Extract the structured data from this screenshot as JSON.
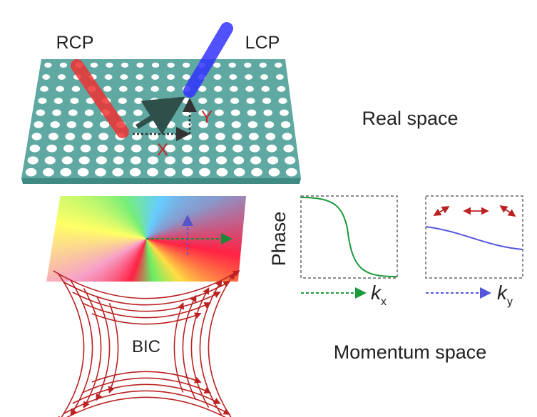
{
  "labels": {
    "rcp": "RCP",
    "lcp": "LCP",
    "x_axis": "X",
    "y_axis": "Y",
    "real_space": "Real space",
    "phase": "Phase",
    "kx": {
      "k": "k",
      "sub": "x"
    },
    "ky": {
      "k": "k",
      "sub": "y"
    },
    "bic": "BIC",
    "momentum_space": "Momentum space"
  }
}
